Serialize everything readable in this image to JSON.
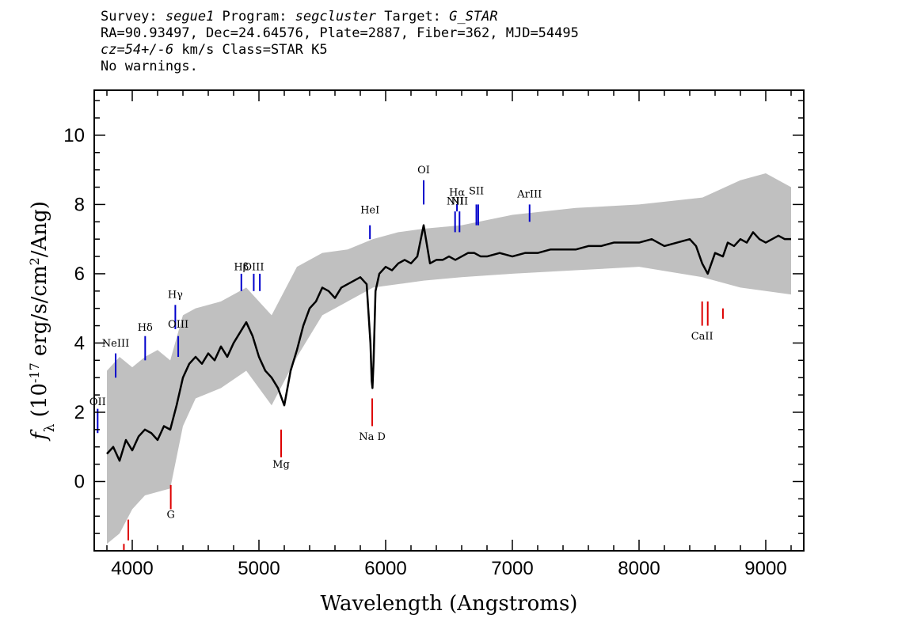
{
  "header": {
    "line1": {
      "survey_prefix": "Survey: ",
      "survey": "segue1",
      "program_prefix": " Program: ",
      "program": "segcluster",
      "target_prefix": " Target: ",
      "target": "G_STAR"
    },
    "line2": "RA=90.93497, Dec=24.64576, Plate=2887, Fiber=362, MJD=54495",
    "line3": {
      "cz": "cz=54+/-6",
      "rest": " km/s Class=STAR K5"
    },
    "line4": "No warnings."
  },
  "chart_data": {
    "type": "line",
    "xlabel": "Wavelength (Angstroms)",
    "ylabel": "f_λ (10^-17 erg/s/cm^2/Ang)",
    "xlim": [
      3700,
      9300
    ],
    "ylim": [
      -2,
      11.3
    ],
    "x_ticks": [
      4000,
      5000,
      6000,
      7000,
      8000,
      9000
    ],
    "y_ticks": [
      0,
      2,
      4,
      6,
      8,
      10
    ],
    "grid": false,
    "colors": {
      "flux": "#000000",
      "noise": "#c0c0c0",
      "emission": "#0000cc",
      "absorption": "#dd0000"
    },
    "series": [
      {
        "style": "black line",
        "x": [
          3800,
          3850,
          3900,
          3950,
          4000,
          4050,
          4100,
          4150,
          4200,
          4250,
          4300,
          4350,
          4400,
          4450,
          4500,
          4550,
          4600,
          4650,
          4700,
          4750,
          4800,
          4850,
          4900,
          4950,
          5000,
          5050,
          5100,
          5150,
          5200,
          5250,
          5300,
          5350,
          5400,
          5450,
          5500,
          5550,
          5600,
          5650,
          5700,
          5750,
          5800,
          5850,
          5880,
          5890,
          5896,
          5905,
          5920,
          5950,
          6000,
          6050,
          6100,
          6150,
          6200,
          6250,
          6300,
          6350,
          6400,
          6450,
          6500,
          6550,
          6600,
          6650,
          6700,
          6750,
          6800,
          6900,
          7000,
          7100,
          7200,
          7300,
          7400,
          7500,
          7600,
          7700,
          7800,
          7900,
          8000,
          8100,
          8200,
          8300,
          8400,
          8450,
          8498,
          8542,
          8600,
          8662,
          8700,
          8750,
          8800,
          8850,
          8900,
          8950,
          9000,
          9050,
          9100,
          9150,
          9200
        ],
        "y": [
          0.8,
          1.0,
          0.6,
          1.2,
          0.9,
          1.3,
          1.5,
          1.4,
          1.2,
          1.6,
          1.5,
          2.2,
          3.0,
          3.4,
          3.6,
          3.4,
          3.7,
          3.5,
          3.9,
          3.6,
          4.0,
          4.3,
          4.6,
          4.2,
          3.6,
          3.2,
          3.0,
          2.7,
          2.2,
          3.2,
          3.8,
          4.5,
          5.0,
          5.2,
          5.6,
          5.5,
          5.3,
          5.6,
          5.7,
          5.8,
          5.9,
          5.7,
          4.0,
          2.9,
          2.7,
          3.5,
          5.5,
          6.0,
          6.2,
          6.1,
          6.3,
          6.4,
          6.3,
          6.5,
          7.4,
          6.3,
          6.4,
          6.4,
          6.5,
          6.4,
          6.5,
          6.6,
          6.6,
          6.5,
          6.5,
          6.6,
          6.5,
          6.6,
          6.6,
          6.7,
          6.7,
          6.7,
          6.8,
          6.8,
          6.9,
          6.9,
          6.9,
          7.0,
          6.8,
          6.9,
          7.0,
          6.8,
          6.3,
          6.0,
          6.6,
          6.5,
          6.9,
          6.8,
          7.0,
          6.9,
          7.2,
          7.0,
          6.9,
          7.0,
          7.1,
          7.0,
          7.0
        ]
      }
    ],
    "noise_band": {
      "x": [
        3800,
        3900,
        4000,
        4100,
        4200,
        4300,
        4400,
        4500,
        4700,
        4900,
        5100,
        5300,
        5500,
        5700,
        5900,
        6100,
        6300,
        6600,
        7000,
        7500,
        8000,
        8500,
        8800,
        9000,
        9200
      ],
      "low": [
        -1.8,
        -1.5,
        -0.8,
        -0.4,
        -0.3,
        -0.2,
        1.6,
        2.4,
        2.7,
        3.2,
        2.2,
        3.6,
        4.8,
        5.2,
        5.6,
        5.7,
        5.8,
        5.9,
        6.0,
        6.1,
        6.2,
        5.9,
        5.6,
        5.5,
        5.4
      ],
      "high": [
        3.2,
        3.6,
        3.3,
        3.6,
        3.8,
        3.5,
        4.8,
        5.0,
        5.2,
        5.6,
        4.8,
        6.2,
        6.6,
        6.7,
        7.0,
        7.2,
        7.3,
        7.4,
        7.7,
        7.9,
        8.0,
        8.2,
        8.7,
        8.9,
        8.5
      ]
    },
    "emission_lines": [
      {
        "label": "OII",
        "x": 3727,
        "y1": 1.4,
        "y2": 2.1,
        "label_y": 2.2
      },
      {
        "label": "NeIII",
        "x": 3869,
        "y1": 3.0,
        "y2": 3.7,
        "label_y": 3.9
      },
      {
        "label": "Hδ",
        "x": 4102,
        "y1": 3.5,
        "y2": 4.2,
        "label_y": 4.35
      },
      {
        "label": "Hγ",
        "x": 4340,
        "y1": 4.4,
        "y2": 5.1,
        "label_y": 5.3
      },
      {
        "label": "OIII",
        "x": 4363,
        "y1": 3.6,
        "y2": 4.2,
        "label_y": 4.45
      },
      {
        "label": "Hβ",
        "x": 4861,
        "y1": 5.5,
        "y2": 6.0,
        "label_y": 6.1
      },
      {
        "label": "OIII",
        "x": 4959,
        "y1": 5.5,
        "y2": 6.0,
        "label_y": 6.1
      },
      {
        "label": "",
        "x": 5007,
        "y1": 5.5,
        "y2": 6.0,
        "label_y": 6.1
      },
      {
        "label": "HeI",
        "x": 5876,
        "y1": 7.0,
        "y2": 7.4,
        "label_y": 7.75
      },
      {
        "label": "OI",
        "x": 6300,
        "y1": 8.0,
        "y2": 8.7,
        "label_y": 8.9
      },
      {
        "label": "NII",
        "x": 6548,
        "y1": 7.2,
        "y2": 7.8,
        "label_y": 8.0
      },
      {
        "label": "Hα",
        "x": 6563,
        "y1": 7.8,
        "y2": 8.0,
        "label_y": 8.25
      },
      {
        "label": "NII",
        "x": 6583,
        "y1": 7.2,
        "y2": 7.8,
        "label_y": 8.0
      },
      {
        "label": "SII",
        "x": 6716,
        "y1": 7.4,
        "y2": 8.0,
        "label_y": 8.3
      },
      {
        "label": "",
        "x": 6731,
        "y1": 7.4,
        "y2": 8.0,
        "label_y": 8.3
      },
      {
        "label": "ArIII",
        "x": 7136,
        "y1": 7.5,
        "y2": 8.0,
        "label_y": 8.2
      }
    ],
    "absorption_lines": [
      {
        "label": "G",
        "x": 4304,
        "y1": -0.1,
        "y2": -0.8,
        "label_y": -1.05
      },
      {
        "label": "Mg",
        "x": 5175,
        "y1": 1.5,
        "y2": 0.7,
        "label_y": 0.4
      },
      {
        "label": "Na D",
        "x": 5894,
        "y1": 2.4,
        "y2": 1.6,
        "label_y": 1.2
      },
      {
        "label": "CaII",
        "x": 8498,
        "y1": 5.2,
        "y2": 4.5,
        "label_y": 4.1
      },
      {
        "label": "",
        "x": 8542,
        "y1": 5.2,
        "y2": 4.5,
        "label_y": 4.1
      },
      {
        "label": "",
        "x": 8662,
        "y1": 5.0,
        "y2": 4.7,
        "label_y": 4.1
      },
      {
        "label": "",
        "x": 3934,
        "y1": -1.8,
        "y2": -2.0,
        "label_y": -2.0
      },
      {
        "label": "",
        "x": 3969,
        "y1": -1.1,
        "y2": -1.7,
        "label_y": -2.0
      }
    ]
  }
}
